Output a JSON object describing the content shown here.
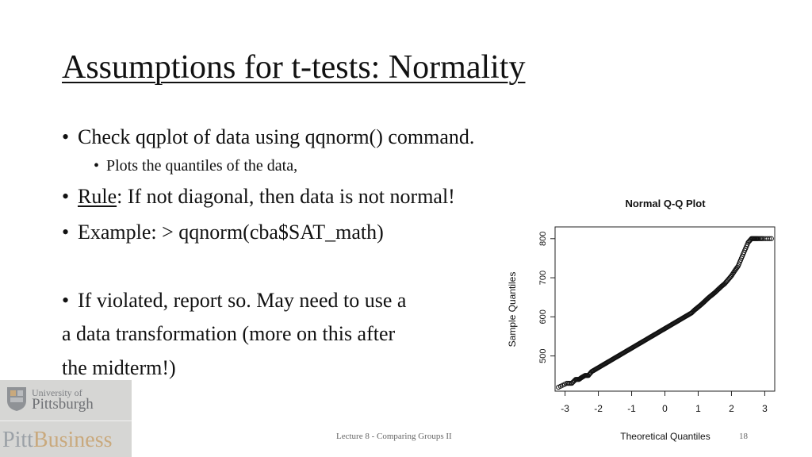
{
  "slide": {
    "title": "Assumptions for t-tests: Normality",
    "bullets": {
      "b1": "Check qqplot of data using qqnorm() command.",
      "b1_sub": "Plots the quantiles of the data,",
      "b2_rule": "Rule",
      "b2_rest": ": If not diagonal, then data is not normal!",
      "b3": "Example: > qqnorm(cba$SAT_math)",
      "b4": "If violated, report so. May need to use a",
      "b4_line2": "a data transformation (more on this after",
      "b4_line3": "the midterm!)"
    },
    "footer": "Lecture 8 - Comparing Groups II",
    "page_number": "18",
    "logo": {
      "line1": "University of",
      "line2": "Pittsburgh",
      "part1": "Pitt",
      "part2": "Business"
    }
  },
  "chart_data": {
    "type": "scatter",
    "title": "Normal Q-Q Plot",
    "xlabel": "Theoretical Quantiles",
    "ylabel": "Sample Quantiles",
    "xlim": [
      -3.3,
      3.3
    ],
    "ylim": [
      410,
      830
    ],
    "xticks": [
      -3,
      -2,
      -1,
      0,
      1,
      2,
      3
    ],
    "yticks": [
      500,
      600,
      700,
      800
    ],
    "grid": false,
    "x": [
      -3.2,
      -2.95,
      -2.8,
      -2.68,
      -2.58,
      -2.5,
      -2.4,
      -2.3,
      -2.2,
      -2.1,
      -2.0,
      -1.9,
      -1.8,
      -1.7,
      -1.6,
      -1.5,
      -1.4,
      -1.3,
      -1.2,
      -1.1,
      -1.0,
      -0.9,
      -0.8,
      -0.7,
      -0.6,
      -0.5,
      -0.4,
      -0.3,
      -0.2,
      -0.1,
      0.0,
      0.1,
      0.2,
      0.3,
      0.4,
      0.5,
      0.6,
      0.7,
      0.8,
      0.9,
      1.0,
      1.1,
      1.2,
      1.3,
      1.4,
      1.5,
      1.6,
      1.7,
      1.8,
      1.9,
      2.0,
      2.1,
      2.2,
      2.3,
      2.4,
      2.5,
      2.6,
      2.7,
      2.8,
      2.95,
      3.2
    ],
    "y": [
      420,
      430,
      430,
      440,
      440,
      445,
      450,
      450,
      460,
      465,
      470,
      475,
      480,
      485,
      490,
      495,
      500,
      505,
      510,
      515,
      520,
      525,
      530,
      535,
      540,
      545,
      550,
      555,
      560,
      565,
      570,
      575,
      580,
      585,
      590,
      595,
      600,
      605,
      610,
      618,
      625,
      632,
      640,
      648,
      655,
      662,
      670,
      678,
      685,
      695,
      705,
      718,
      730,
      750,
      770,
      790,
      800,
      800,
      800,
      800,
      800
    ]
  }
}
